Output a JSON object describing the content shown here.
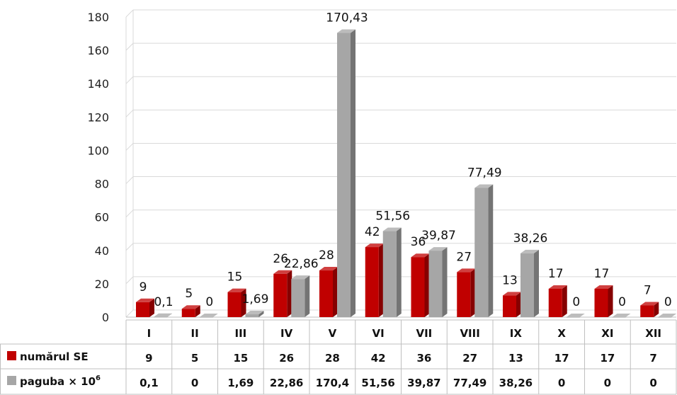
{
  "chart_data": {
    "type": "bar",
    "categories": [
      "I",
      "II",
      "III",
      "IV",
      "V",
      "VI",
      "VII",
      "VIII",
      "IX",
      "X",
      "XI",
      "XII"
    ],
    "ylim": [
      0,
      180
    ],
    "yticks": [
      0,
      20,
      40,
      60,
      80,
      100,
      120,
      140,
      160,
      180
    ],
    "grid": true,
    "series": [
      {
        "name": "numărul SE",
        "color": "#c00000",
        "values": [
          9,
          5,
          15,
          26,
          28,
          42,
          36,
          27,
          13,
          17,
          17,
          7
        ],
        "labels": [
          "9",
          "5",
          "15",
          "26",
          "28",
          "42",
          "36",
          "27",
          "13",
          "17",
          "17",
          "7"
        ],
        "table": [
          "9",
          "5",
          "15",
          "26",
          "28",
          "42",
          "36",
          "27",
          "13",
          "17",
          "17",
          "7"
        ]
      },
      {
        "name": "paguba × 10",
        "name_sup": "6",
        "color": "#a6a6a6",
        "values": [
          0.1,
          0,
          1.69,
          22.86,
          170.43,
          51.56,
          39.87,
          77.49,
          38.26,
          0,
          0,
          0
        ],
        "labels": [
          "0,1",
          "0",
          "1,69",
          "22,86",
          "170,43",
          "51,56",
          "39,87",
          "77,49",
          "38,26",
          "0",
          "0",
          "0"
        ],
        "table": [
          "0,1",
          "0",
          "1,69",
          "22,86",
          "170,4",
          "51,56",
          "39,87",
          "77,49",
          "38,26",
          "0",
          "0",
          "0"
        ]
      }
    ]
  }
}
